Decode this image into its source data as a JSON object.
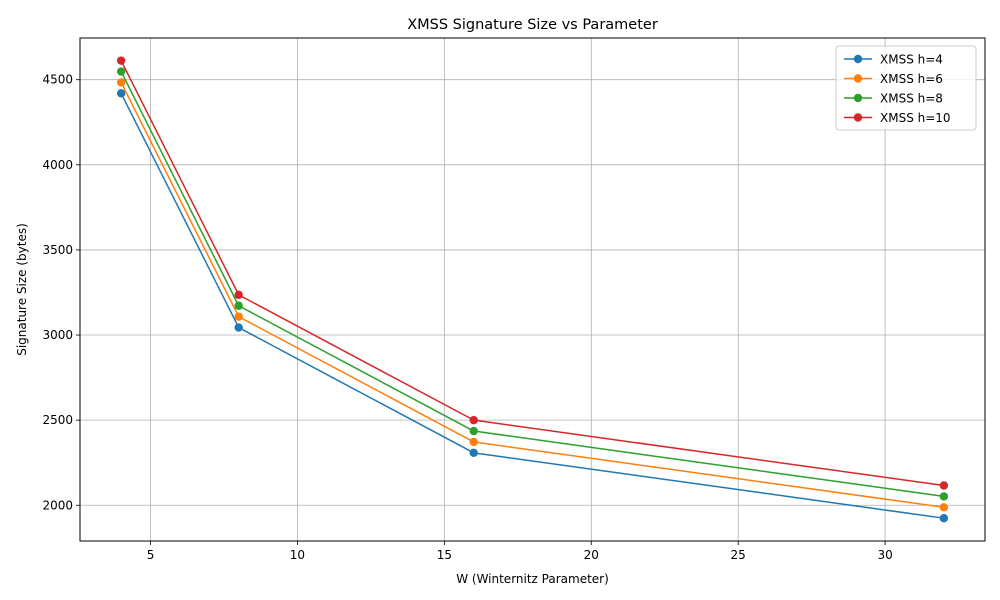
{
  "chart_data": {
    "type": "line",
    "title": "XMSS Signature Size vs Parameter",
    "xlabel": "W (Winternitz Parameter)",
    "ylabel": "Signature Size (bytes)",
    "x": [
      4,
      8,
      16,
      32
    ],
    "xlim": [
      2.6,
      33.4
    ],
    "ylim": [
      1790,
      4745
    ],
    "xticks": [
      5,
      10,
      15,
      20,
      25,
      30
    ],
    "yticks": [
      2000,
      2500,
      3000,
      3500,
      4000,
      4500
    ],
    "grid": true,
    "legend_position": "top-right",
    "marker": "circle",
    "series": [
      {
        "name": "XMSS h=4",
        "color": "#1f77b4",
        "values": [
          4420,
          3044,
          2308,
          1924
        ]
      },
      {
        "name": "XMSS h=6",
        "color": "#ff7f0e",
        "values": [
          4484,
          3108,
          2372,
          1988
        ]
      },
      {
        "name": "XMSS h=8",
        "color": "#2ca02c",
        "values": [
          4548,
          3172,
          2436,
          2052
        ]
      },
      {
        "name": "XMSS h=10",
        "color": "#d62728",
        "values": [
          4612,
          3236,
          2500,
          2116
        ]
      }
    ]
  }
}
